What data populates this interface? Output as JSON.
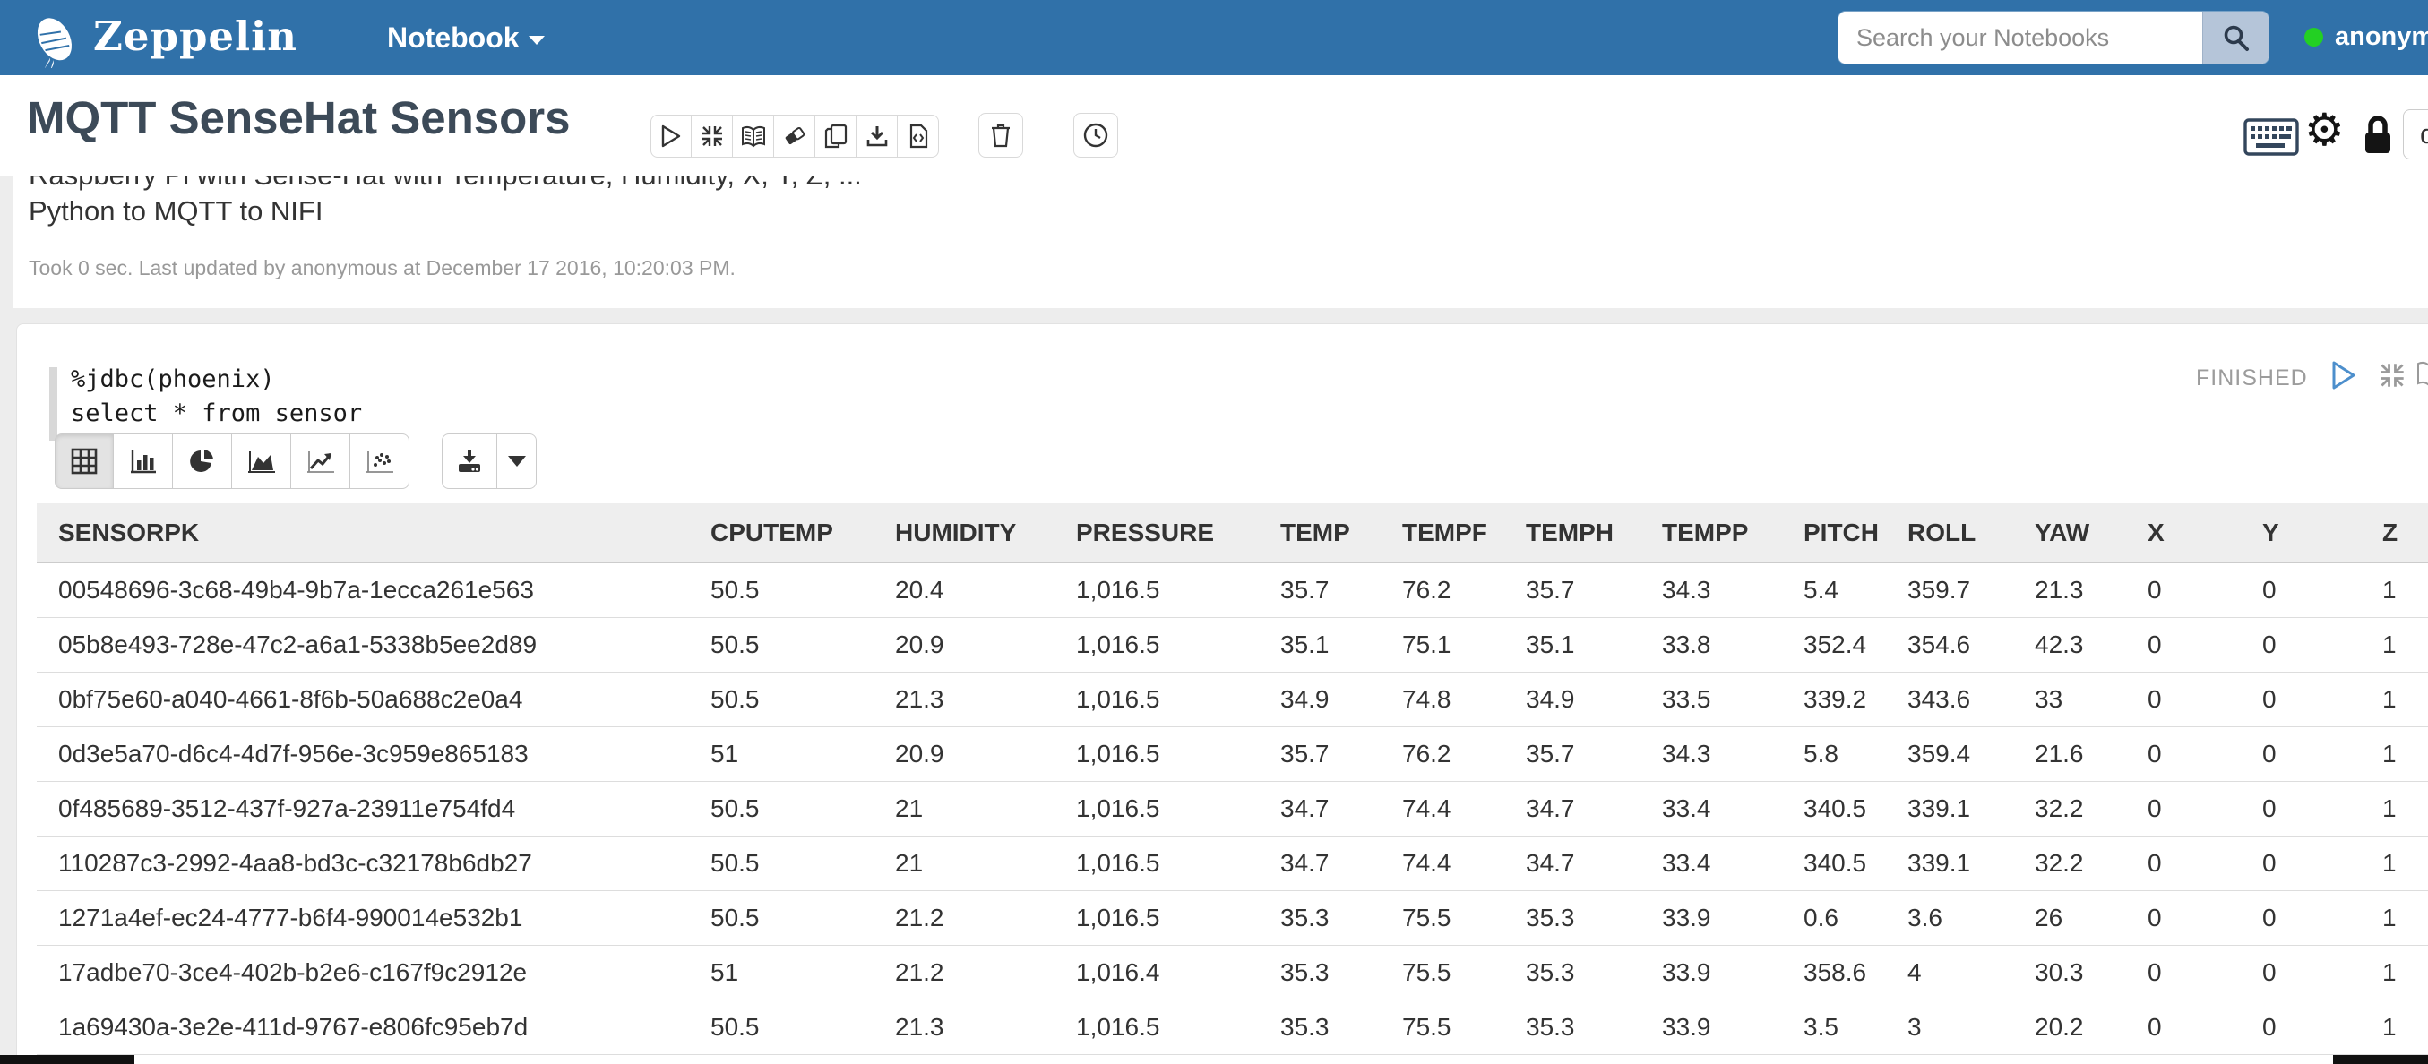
{
  "navbar": {
    "brand": "Zeppelin",
    "menu": {
      "label": "Notebook"
    },
    "search": {
      "placeholder": "Search your Notebooks"
    },
    "user": {
      "name": "anonymous",
      "status_color": "#23d023"
    }
  },
  "note": {
    "title": "MQTT SenseHat Sensors",
    "default_display_button": "d"
  },
  "paragraph_markdown": {
    "line1": "Raspberry Pi with Sense-Hat with Temperature, Humidity, X, Y, Z, ...",
    "line2": "Python to MQTT to NIFI",
    "status_line": "Took 0 sec. Last updated by anonymous at December 17 2016, 10:20:03 PM."
  },
  "paragraph_sql": {
    "code": {
      "line1": "%jdbc(phoenix)",
      "line2": "select * from sensor"
    },
    "status": "FINISHED"
  },
  "result_table": {
    "columns": [
      "SENSORPK",
      "CPUTEMP",
      "HUMIDITY",
      "PRESSURE",
      "TEMP",
      "TEMPF",
      "TEMPH",
      "TEMPP",
      "PITCH",
      "ROLL",
      "YAW",
      "X",
      "Y",
      "Z"
    ],
    "rows": [
      [
        "00548696-3c68-49b4-9b7a-1ecca261e563",
        "50.5",
        "20.4",
        "1,016.5",
        "35.7",
        "76.2",
        "35.7",
        "34.3",
        "5.4",
        "359.7",
        "21.3",
        "0",
        "0",
        "1"
      ],
      [
        "05b8e493-728e-47c2-a6a1-5338b5ee2d89",
        "50.5",
        "20.9",
        "1,016.5",
        "35.1",
        "75.1",
        "35.1",
        "33.8",
        "352.4",
        "354.6",
        "42.3",
        "0",
        "0",
        "1"
      ],
      [
        "0bf75e60-a040-4661-8f6b-50a688c2e0a4",
        "50.5",
        "21.3",
        "1,016.5",
        "34.9",
        "74.8",
        "34.9",
        "33.5",
        "339.2",
        "343.6",
        "33",
        "0",
        "0",
        "1"
      ],
      [
        "0d3e5a70-d6c4-4d7f-956e-3c959e865183",
        "51",
        "20.9",
        "1,016.5",
        "35.7",
        "76.2",
        "35.7",
        "34.3",
        "5.8",
        "359.4",
        "21.6",
        "0",
        "0",
        "1"
      ],
      [
        "0f485689-3512-437f-927a-23911e754fd4",
        "50.5",
        "21",
        "1,016.5",
        "34.7",
        "74.4",
        "34.7",
        "33.4",
        "340.5",
        "339.1",
        "32.2",
        "0",
        "0",
        "1"
      ],
      [
        "110287c3-2992-4aa8-bd3c-c32178b6db27",
        "50.5",
        "21",
        "1,016.5",
        "34.7",
        "74.4",
        "34.7",
        "33.4",
        "340.5",
        "339.1",
        "32.2",
        "0",
        "0",
        "1"
      ],
      [
        "1271a4ef-ec24-4777-b6f4-990014e532b1",
        "50.5",
        "21.2",
        "1,016.5",
        "35.3",
        "75.5",
        "35.3",
        "33.9",
        "0.6",
        "3.6",
        "26",
        "0",
        "0",
        "1"
      ],
      [
        "17adbe70-3ce4-402b-b2e6-c167f9c2912e",
        "51",
        "21.2",
        "1,016.4",
        "35.3",
        "75.5",
        "35.3",
        "33.9",
        "358.6",
        "4",
        "30.3",
        "0",
        "0",
        "1"
      ],
      [
        "1a69430a-3e2e-411d-9767-e806fc95eb7d",
        "50.5",
        "21.3",
        "1,016.5",
        "35.3",
        "75.5",
        "35.3",
        "33.9",
        "3.5",
        "3",
        "20.2",
        "0",
        "0",
        "1"
      ]
    ]
  },
  "icons": {
    "brand": "zeppelin-airship",
    "navbar": [
      "search-icon"
    ],
    "note_toolbar": [
      "play-icon",
      "shrink-icon",
      "book-icon",
      "eraser-icon",
      "clone-icon",
      "download-icon",
      "code-file-icon",
      "trash-icon",
      "clock-icon"
    ],
    "note_right": [
      "keyboard-icon",
      "gear-icon",
      "lock-icon"
    ],
    "paragraph": [
      "play-icon",
      "shrink-icon",
      "book-icon"
    ],
    "chart_switcher": [
      "table-icon",
      "bar-chart-icon",
      "pie-chart-icon",
      "area-chart-icon",
      "line-chart-icon",
      "scatter-chart-icon"
    ],
    "download": [
      "download-icon",
      "chevron-down-icon"
    ]
  },
  "colors": {
    "navbar_bg": "#3071a9",
    "title_text": "#3c4a58",
    "accent_blue": "#4d8fcc",
    "status_green": "#23d023",
    "table_header_bg": "#eeeeee",
    "table_border": "#dddddd",
    "muted_text": "#999999"
  }
}
